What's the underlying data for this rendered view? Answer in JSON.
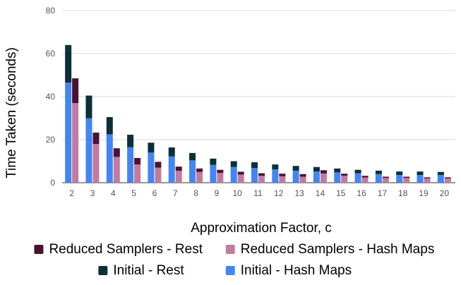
{
  "chart_data": {
    "type": "bar",
    "stacking": "grouped-stacked",
    "title": "",
    "xlabel": "Approximation Factor, c",
    "ylabel": "Time Taken (seconds)",
    "ylim": [
      0,
      80
    ],
    "yticks": [
      0,
      20,
      40,
      60,
      80
    ],
    "grid": true,
    "legend_position": "bottom",
    "categories": [
      "2",
      "3",
      "4",
      "5",
      "6",
      "7",
      "8",
      "9",
      "10",
      "11",
      "12",
      "13",
      "14",
      "15",
      "16",
      "17",
      "18",
      "19",
      "20"
    ],
    "series": [
      {
        "name": "Initial - Hash Maps",
        "group": "Initial",
        "color": "#4285f4",
        "values": [
          46.5,
          30,
          22.5,
          16.5,
          14,
          12.2,
          10.4,
          8.3,
          7.3,
          6.8,
          6.2,
          5.6,
          5.2,
          4.8,
          4.4,
          4.0,
          3.6,
          3.6,
          3.6
        ]
      },
      {
        "name": "Initial - Rest",
        "group": "Initial",
        "color": "#0d3038",
        "values": [
          17.5,
          10.5,
          8,
          5.8,
          4.6,
          4.2,
          3.4,
          2.9,
          2.7,
          2.7,
          2.3,
          2.2,
          2.1,
          1.8,
          1.6,
          1.6,
          1.6,
          1.6,
          1.4
        ]
      },
      {
        "name": "Reduced Samplers - Hash Maps",
        "group": "Reduced Samplers",
        "color": "#c27ba0",
        "values": [
          37,
          18,
          12,
          8.5,
          7,
          5.5,
          5,
          4.5,
          3.8,
          3.2,
          3,
          2.8,
          4.3,
          3.2,
          2.4,
          2.2,
          2.2,
          2.0,
          2.0
        ]
      },
      {
        "name": "Reduced Samplers - Rest",
        "group": "Reduced Samplers",
        "color": "#4c1130",
        "values": [
          11.5,
          5.3,
          4,
          3,
          2.7,
          2,
          1.6,
          1.5,
          1.3,
          1.2,
          1.2,
          1.2,
          1.5,
          1,
          0.8,
          0.6,
          0.6,
          0.5,
          0.5
        ]
      }
    ],
    "legend": [
      {
        "label": "Reduced Samplers - Rest",
        "color": "#4c1130"
      },
      {
        "label": "Reduced Samplers - Hash Maps",
        "color": "#c27ba0"
      },
      {
        "label": "Initial - Rest",
        "color": "#0d3038"
      },
      {
        "label": "Initial - Hash Maps",
        "color": "#4285f4"
      }
    ]
  }
}
